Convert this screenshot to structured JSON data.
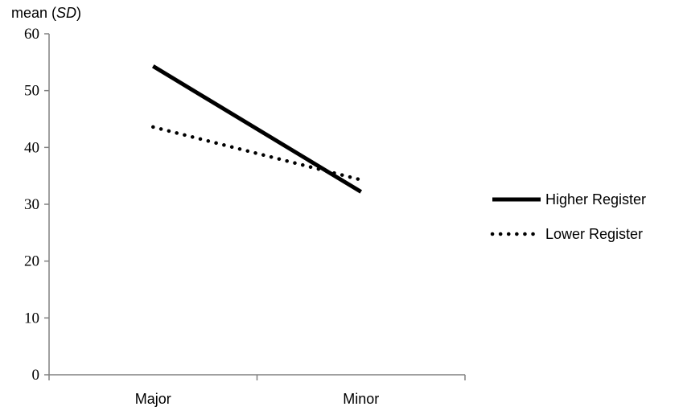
{
  "chart_data": {
    "type": "line",
    "ylabel_prefix": "mean (",
    "ylabel_italic": "SD",
    "ylabel_suffix": ")",
    "categories": [
      "Major",
      "Minor"
    ],
    "ylim": [
      0,
      60
    ],
    "yticks": [
      0,
      10,
      20,
      30,
      40,
      50,
      60
    ],
    "ytick_labels": [
      "0",
      "10",
      "20",
      "30",
      "40",
      "50",
      "60"
    ],
    "grid": false,
    "legend_position": "right",
    "series": [
      {
        "name": "Higher Register",
        "values": [
          54.3,
          32.2
        ],
        "style": "solid",
        "color": "#000000"
      },
      {
        "name": "Lower Register",
        "values": [
          43.6,
          34.3
        ],
        "style": "dotted",
        "color": "#000000"
      }
    ]
  }
}
